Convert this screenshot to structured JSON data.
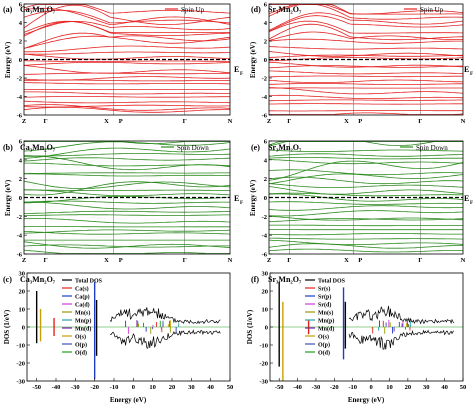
{
  "figure": {
    "ef_label": "E",
    "ef_sub": "F",
    "colors": {
      "spin_up": "#e52222",
      "spin_down": "#2b8a1e",
      "axis": "#000000",
      "dash": "#000000"
    }
  },
  "chart_data": [
    {
      "id": "a",
      "type": "line",
      "panel_label": "(a)",
      "title": "Ca₃Mn₂O₇",
      "legend": "Spin Up",
      "ylabel": "Energy (eV)",
      "ylim": [
        -6,
        6
      ],
      "yticks": [
        "6",
        "4",
        "2",
        "0",
        "-2",
        "-4",
        "-6"
      ],
      "kpoints": [
        "Z",
        "Γ",
        "X",
        "P",
        "Γ",
        "N"
      ],
      "fermi_level": 0
    },
    {
      "id": "d",
      "type": "line",
      "panel_label": "(d)",
      "title": "Sr₃Mn₂O₇",
      "legend": "Spin Up",
      "ylabel": "Energy (eV)",
      "ylim": [
        -6,
        6
      ],
      "yticks": [
        "6",
        "4",
        "2",
        "0",
        "-2",
        "-4",
        "-6"
      ],
      "kpoints": [
        "Z",
        "Γ",
        "X",
        "P",
        "Γ",
        "N"
      ],
      "fermi_level": 0
    },
    {
      "id": "b",
      "type": "line",
      "panel_label": "(b)",
      "title": "Ca₃Mn₂O₇",
      "legend": "Spin Down",
      "ylabel": "Energy (eV)",
      "ylim": [
        -6,
        6
      ],
      "yticks": [
        "6",
        "4",
        "2",
        "0",
        "-2",
        "-4",
        "-6"
      ],
      "kpoints": [
        "Z",
        "Γ",
        "X",
        "P",
        "Γ",
        "N"
      ],
      "fermi_level": 0
    },
    {
      "id": "e",
      "type": "line",
      "panel_label": "(e)",
      "title": "Sr₃Mn₂O₇",
      "legend": "Spin Down",
      "ylabel": "Energy (eV)",
      "ylim": [
        -6,
        6
      ],
      "yticks": [
        "6",
        "4",
        "2",
        "0",
        "-2",
        "-4",
        "-6"
      ],
      "kpoints": [
        "Z",
        "Γ",
        "X",
        "P",
        "Γ",
        "N"
      ],
      "fermi_level": 0
    },
    {
      "id": "c",
      "type": "line",
      "panel_label": "(c)",
      "title": "Ca₃Mn₂O₇",
      "xlabel": "Energy (eV)",
      "ylabel": "DOS (1/eV)",
      "xlim": [
        -55,
        50
      ],
      "ylim": [
        -30,
        30
      ],
      "xticks": [
        "-50",
        "-40",
        "-30",
        "-20",
        "-10",
        "0",
        "10",
        "20",
        "30",
        "40",
        "50"
      ],
      "yticks": [
        "30",
        "20",
        "10",
        "0",
        "-10",
        "-20",
        "-30"
      ],
      "legend": [
        "Total DOS",
        "Ca(s)",
        "Ca(p)",
        "Ca(d)",
        "Mn(s)",
        "Mn(p)",
        "Mn(d)",
        "O(s)",
        "O(p)",
        "O(d)"
      ],
      "legend_colors": [
        "#000000",
        "#e52222",
        "#1f3cc8",
        "#d63ad6",
        "#9a9a00",
        "#2aa2a2",
        "#7b1fa2",
        "#c8a000",
        "#3f51b5",
        "#20a020"
      ],
      "peaks": [
        {
          "e": -50,
          "up": 20,
          "down": -9,
          "color": "#000000"
        },
        {
          "e": -48,
          "up": 10,
          "down": -8,
          "color": "#c8a000"
        },
        {
          "e": -41,
          "up": 5,
          "down": -5,
          "color": "#e52222"
        },
        {
          "e": -20,
          "up": 25,
          "down": -29,
          "color": "#1f3cc8"
        },
        {
          "e": -19,
          "up": 15,
          "down": -16,
          "color": "#000000"
        }
      ]
    },
    {
      "id": "f",
      "type": "line",
      "panel_label": "(f)",
      "title": "Sr₃Mn₂O₇",
      "xlabel": "Energy (eV)",
      "ylabel": "DOS (1/eV)",
      "xlim": [
        -55,
        50
      ],
      "ylim": [
        -30,
        30
      ],
      "xticks": [
        "-50",
        "-40",
        "-30",
        "-20",
        "-10",
        "0",
        "10",
        "20",
        "30",
        "40",
        "50"
      ],
      "yticks": [
        "30",
        "20",
        "10",
        "0",
        "-10",
        "-20",
        "-30"
      ],
      "legend": [
        "Total DOS",
        "Sr(s)",
        "Sr(p)",
        "Sr(d)",
        "Mn(s)",
        "Mn(p)",
        "Mn(d)",
        "O(s)",
        "O(p)",
        "O(d)"
      ],
      "legend_colors": [
        "#000000",
        "#e52222",
        "#1f3cc8",
        "#d63ad6",
        "#9a9a00",
        "#2aa2a2",
        "#7b1fa2",
        "#c8a000",
        "#3f51b5",
        "#20a020"
      ],
      "peaks": [
        {
          "e": -50,
          "up": 25,
          "down": -22,
          "color": "#000000"
        },
        {
          "e": -48,
          "up": 14,
          "down": -30,
          "color": "#c8a000"
        },
        {
          "e": -34,
          "up": 4,
          "down": -4,
          "color": "#e52222"
        },
        {
          "e": -15,
          "up": 22,
          "down": -18,
          "color": "#1f3cc8"
        },
        {
          "e": -14,
          "up": 14,
          "down": -12,
          "color": "#000000"
        }
      ]
    }
  ]
}
